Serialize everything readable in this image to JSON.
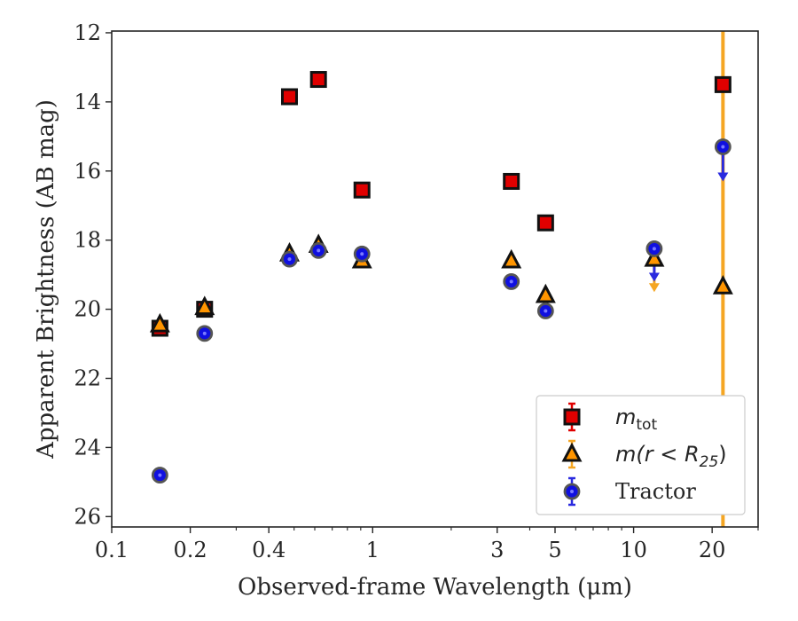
{
  "chart_data": {
    "type": "scatter",
    "xscale": "log",
    "xlim": [
      0.1,
      30
    ],
    "ylim": [
      26.3,
      11.95
    ],
    "y_inverted": true,
    "xlabel": "Observed-frame Wavelength (μm)",
    "ylabel": "Apparent Brightness (AB mag)",
    "xticks": [
      0.1,
      0.2,
      0.4,
      1,
      3,
      5,
      10,
      20
    ],
    "xtick_labels": [
      "0.1",
      "0.2",
      "0.4",
      "1",
      "3",
      "5",
      "10",
      "20"
    ],
    "yticks": [
      12,
      14,
      16,
      18,
      20,
      22,
      24,
      26
    ],
    "ytick_labels": [
      "12",
      "14",
      "16",
      "18",
      "20",
      "22",
      "24",
      "26"
    ],
    "vertical_line": {
      "x": 22,
      "color": "#f5a623"
    },
    "legend_position": "lower-right",
    "series": [
      {
        "name_base": "m",
        "name_sub": "tot",
        "marker": "square",
        "color": "#e00000",
        "edge": "#111111",
        "errbar_color": "#e00000",
        "points": [
          {
            "x": 0.153,
            "y": 20.55
          },
          {
            "x": 0.227,
            "y": 20.0
          },
          {
            "x": 0.48,
            "y": 13.85
          },
          {
            "x": 0.62,
            "y": 13.35
          },
          {
            "x": 0.91,
            "y": 16.55
          },
          {
            "x": 3.4,
            "y": 16.3
          },
          {
            "x": 4.6,
            "y": 17.5
          },
          {
            "x": 22.0,
            "y": 13.5
          }
        ]
      },
      {
        "name_prefix": "m(r < R",
        "name_sub": "25",
        "name_suffix": ")",
        "marker": "triangle",
        "color": "#ff9500",
        "edge": "#111111",
        "errbar_color": "#f5a623",
        "points": [
          {
            "x": 0.153,
            "y": 20.45
          },
          {
            "x": 0.227,
            "y": 19.95
          },
          {
            "x": 0.48,
            "y": 18.4
          },
          {
            "x": 0.62,
            "y": 18.15
          },
          {
            "x": 0.91,
            "y": 18.6
          },
          {
            "x": 3.4,
            "y": 18.6
          },
          {
            "x": 4.6,
            "y": 19.6
          },
          {
            "x": 12.0,
            "y": 18.55
          },
          {
            "x": 22.0,
            "y": 19.35
          }
        ],
        "upper_limits": [
          {
            "x": 12.0,
            "from": 18.55,
            "to": 19.4
          }
        ]
      },
      {
        "name": "Tractor",
        "marker": "circle",
        "color": "#1010e0",
        "edge": "#555555",
        "errbar_color": "#2a2adf",
        "points": [
          {
            "x": 0.153,
            "y": 24.8
          },
          {
            "x": 0.227,
            "y": 20.7
          },
          {
            "x": 0.48,
            "y": 18.55
          },
          {
            "x": 0.62,
            "y": 18.3
          },
          {
            "x": 0.91,
            "y": 18.4
          },
          {
            "x": 3.4,
            "y": 19.2
          },
          {
            "x": 4.6,
            "y": 20.05
          },
          {
            "x": 12.0,
            "y": 18.25
          },
          {
            "x": 22.0,
            "y": 15.3
          }
        ],
        "upper_limits": [
          {
            "x": 12.0,
            "from": 18.25,
            "to": 19.1
          },
          {
            "x": 22.0,
            "from": 15.3,
            "to": 16.2
          }
        ]
      }
    ]
  }
}
